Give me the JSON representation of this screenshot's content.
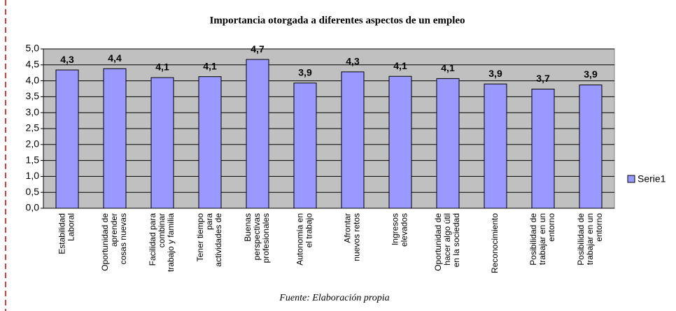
{
  "chart_data": {
    "type": "bar",
    "title": "Importancia otorgada a diferentes aspectos de un empleo",
    "source": "Fuente: Elaboración propia",
    "categories": [
      [
        "Estabilidad",
        "Laboral"
      ],
      [
        "Oportunidad de",
        "aprender",
        "cosas nuevas"
      ],
      [
        "Facilidad para",
        "combinar",
        "trabajo y familia"
      ],
      [
        "Tener tiempo",
        "para",
        "actividades de"
      ],
      [
        "Buenas",
        "perspectivas",
        "profesionales"
      ],
      [
        "Autonomía en",
        "el trabajo"
      ],
      [
        "Afrontar",
        "nuevos retos"
      ],
      [
        "Ingresos",
        "elevados"
      ],
      [
        "Oportunidad de",
        "hacer algo útil",
        "en la sociedad"
      ],
      [
        "Reconocimiento"
      ],
      [
        "Posibilidad de",
        "trabajar en un",
        "entorno"
      ],
      [
        "Posibilidad de",
        "trabajar en un",
        "entorno"
      ]
    ],
    "series": [
      {
        "name": "Serie1",
        "color": "#9999ff",
        "values": [
          4.34,
          4.38,
          4.1,
          4.13,
          4.67,
          3.93,
          4.28,
          4.14,
          4.07,
          3.9,
          3.74,
          3.87
        ],
        "value_labels": [
          "4,3",
          "4,4",
          "4,1",
          "4,1",
          "4,7",
          "3,9",
          "4,3",
          "4,1",
          "4,1",
          "3,9",
          "3,7",
          "3,9"
        ]
      }
    ],
    "ylim": [
      0,
      5
    ],
    "yticks": [
      {
        "value": 0,
        "label": "0,0"
      },
      {
        "value": 0.5,
        "label": "0,5"
      },
      {
        "value": 1,
        "label": "1,0"
      },
      {
        "value": 1.5,
        "label": "1,5"
      },
      {
        "value": 2,
        "label": "2,0"
      },
      {
        "value": 2.5,
        "label": "2,5"
      },
      {
        "value": 3,
        "label": "3,0"
      },
      {
        "value": 3.5,
        "label": "3,5"
      },
      {
        "value": 4,
        "label": "4,0"
      },
      {
        "value": 4.5,
        "label": "4,5"
      },
      {
        "value": 5,
        "label": "5,0"
      }
    ],
    "grid": true,
    "legend": "right"
  }
}
